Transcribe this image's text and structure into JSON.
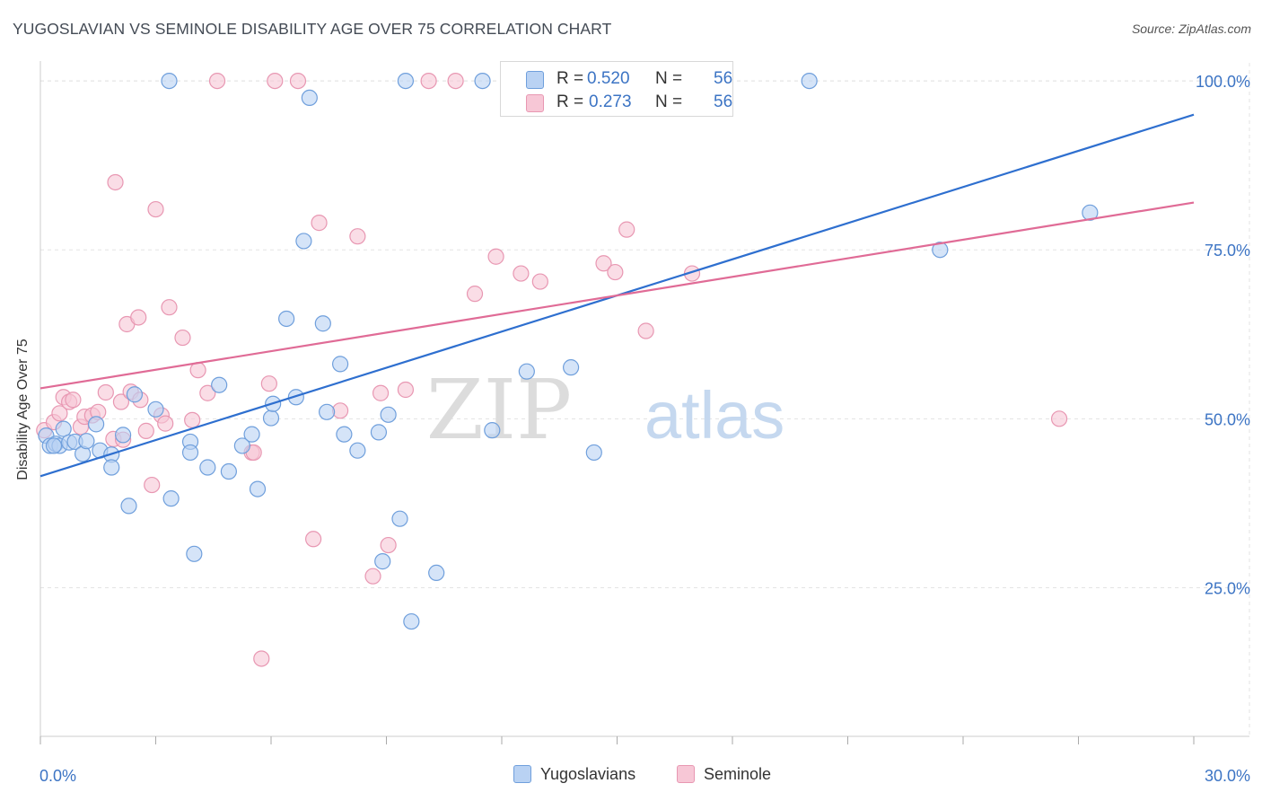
{
  "title": "YUGOSLAVIAN VS SEMINOLE DISABILITY AGE OVER 75 CORRELATION CHART",
  "source": "Source: ZipAtlas.com",
  "watermark": {
    "zip": "ZIP",
    "atlas": "atlas"
  },
  "legend": {
    "r_label": "R =",
    "n_label": "N =",
    "rows": [
      {
        "r": "0.520",
        "n": "56"
      },
      {
        "r": "0.273",
        "n": "56"
      }
    ]
  },
  "bottom_legend": {
    "blue": "Yugoslavians",
    "pink": "Seminole"
  },
  "colors": {
    "blue_line": "#2e6fcf",
    "pink_line": "#e06b96",
    "blue_fill": "#b9d2f3",
    "blue_stroke": "#6f9fdc",
    "pink_fill": "#f7c7d6",
    "pink_stroke": "#e897b2",
    "tick_label": "#3c74c4",
    "grid": "#e3e3e3"
  },
  "chart_data": {
    "type": "scatter",
    "title": "YUGOSLAVIAN VS SEMINOLE DISABILITY AGE OVER 75 CORRELATION CHART",
    "xlabel": "",
    "ylabel": "Disability Age Over 75",
    "xlim": [
      0,
      30
    ],
    "ylim": [
      3,
      104
    ],
    "x_tick_labels": [
      "0.0%",
      "30.0%"
    ],
    "y_ticks": [
      25,
      50,
      75,
      100
    ],
    "y_tick_labels": [
      "25.0%",
      "50.0%",
      "75.0%",
      "100.0%"
    ],
    "grid": true,
    "legend_position": "top-center",
    "series": [
      {
        "name": "Yugoslavians",
        "color": "#6f9fdc",
        "trend": {
          "x": [
            0,
            30
          ],
          "y": [
            41.5,
            95.0
          ]
        },
        "points": [
          {
            "x": 0.15,
            "y": 47.5
          },
          {
            "x": 0.25,
            "y": 46.0
          },
          {
            "x": 0.4,
            "y": 46.3
          },
          {
            "x": 0.5,
            "y": 46.0
          },
          {
            "x": 0.6,
            "y": 48.5
          },
          {
            "x": 0.75,
            "y": 46.5
          },
          {
            "x": 0.9,
            "y": 46.6
          },
          {
            "x": 1.1,
            "y": 44.8
          },
          {
            "x": 1.45,
            "y": 49.2
          },
          {
            "x": 1.55,
            "y": 45.3
          },
          {
            "x": 1.85,
            "y": 44.7
          },
          {
            "x": 1.85,
            "y": 42.8
          },
          {
            "x": 2.15,
            "y": 47.6
          },
          {
            "x": 2.45,
            "y": 53.6
          },
          {
            "x": 3.0,
            "y": 51.4
          },
          {
            "x": 3.4,
            "y": 38.2
          },
          {
            "x": 4.0,
            "y": 30.0
          },
          {
            "x": 3.9,
            "y": 46.6
          },
          {
            "x": 4.35,
            "y": 42.8
          },
          {
            "x": 4.65,
            "y": 55.0
          },
          {
            "x": 4.9,
            "y": 42.2
          },
          {
            "x": 5.25,
            "y": 46.0
          },
          {
            "x": 5.5,
            "y": 47.7
          },
          {
            "x": 5.65,
            "y": 39.6
          },
          {
            "x": 6.0,
            "y": 50.1
          },
          {
            "x": 6.05,
            "y": 52.2
          },
          {
            "x": 6.4,
            "y": 64.8
          },
          {
            "x": 6.65,
            "y": 53.2
          },
          {
            "x": 7.0,
            "y": 97.5
          },
          {
            "x": 7.35,
            "y": 64.1
          },
          {
            "x": 7.45,
            "y": 51.0
          },
          {
            "x": 7.8,
            "y": 58.1
          },
          {
            "x": 7.9,
            "y": 47.7
          },
          {
            "x": 8.25,
            "y": 45.3
          },
          {
            "x": 8.8,
            "y": 48.0
          },
          {
            "x": 8.9,
            "y": 28.9
          },
          {
            "x": 9.05,
            "y": 50.6
          },
          {
            "x": 9.35,
            "y": 35.2
          },
          {
            "x": 9.5,
            "y": 100
          },
          {
            "x": 9.65,
            "y": 20.0
          },
          {
            "x": 10.3,
            "y": 27.2
          },
          {
            "x": 11.5,
            "y": 100
          },
          {
            "x": 11.75,
            "y": 48.3
          },
          {
            "x": 12.65,
            "y": 57.0
          },
          {
            "x": 13.15,
            "y": 100
          },
          {
            "x": 13.8,
            "y": 57.6
          },
          {
            "x": 14.4,
            "y": 45.0
          },
          {
            "x": 20.0,
            "y": 100
          },
          {
            "x": 23.4,
            "y": 75.0
          },
          {
            "x": 27.3,
            "y": 80.5
          },
          {
            "x": 3.35,
            "y": 100
          },
          {
            "x": 2.3,
            "y": 37.1
          },
          {
            "x": 6.85,
            "y": 76.3
          },
          {
            "x": 3.9,
            "y": 45.0
          },
          {
            "x": 1.2,
            "y": 46.7
          },
          {
            "x": 0.35,
            "y": 46.0
          }
        ]
      },
      {
        "name": "Seminole",
        "color": "#e897b2",
        "trend": {
          "x": [
            0,
            30
          ],
          "y": [
            54.5,
            82.0
          ]
        },
        "points": [
          {
            "x": 0.1,
            "y": 48.3
          },
          {
            "x": 0.35,
            "y": 49.5
          },
          {
            "x": 0.5,
            "y": 50.8
          },
          {
            "x": 0.6,
            "y": 53.2
          },
          {
            "x": 0.75,
            "y": 52.5
          },
          {
            "x": 0.85,
            "y": 52.8
          },
          {
            "x": 1.05,
            "y": 48.8
          },
          {
            "x": 1.15,
            "y": 50.3
          },
          {
            "x": 1.35,
            "y": 50.5
          },
          {
            "x": 1.5,
            "y": 51.0
          },
          {
            "x": 1.7,
            "y": 53.9
          },
          {
            "x": 1.9,
            "y": 47.0
          },
          {
            "x": 1.95,
            "y": 85.0
          },
          {
            "x": 2.1,
            "y": 52.5
          },
          {
            "x": 2.25,
            "y": 64.0
          },
          {
            "x": 2.35,
            "y": 54.0
          },
          {
            "x": 2.55,
            "y": 65.0
          },
          {
            "x": 2.6,
            "y": 52.8
          },
          {
            "x": 2.75,
            "y": 48.2
          },
          {
            "x": 2.9,
            "y": 40.2
          },
          {
            "x": 3.0,
            "y": 81.0
          },
          {
            "x": 3.15,
            "y": 50.5
          },
          {
            "x": 3.25,
            "y": 49.3
          },
          {
            "x": 3.35,
            "y": 66.5
          },
          {
            "x": 3.7,
            "y": 62.0
          },
          {
            "x": 3.95,
            "y": 49.8
          },
          {
            "x": 4.1,
            "y": 57.2
          },
          {
            "x": 4.35,
            "y": 53.8
          },
          {
            "x": 4.6,
            "y": 100
          },
          {
            "x": 5.5,
            "y": 45.0
          },
          {
            "x": 5.75,
            "y": 14.5
          },
          {
            "x": 5.95,
            "y": 55.2
          },
          {
            "x": 6.1,
            "y": 100
          },
          {
            "x": 6.7,
            "y": 100
          },
          {
            "x": 7.1,
            "y": 32.2
          },
          {
            "x": 7.25,
            "y": 79.0
          },
          {
            "x": 7.8,
            "y": 51.2
          },
          {
            "x": 8.25,
            "y": 77.0
          },
          {
            "x": 8.65,
            "y": 26.7
          },
          {
            "x": 8.85,
            "y": 53.8
          },
          {
            "x": 9.05,
            "y": 31.3
          },
          {
            "x": 9.5,
            "y": 54.3
          },
          {
            "x": 10.1,
            "y": 100
          },
          {
            "x": 10.8,
            "y": 100
          },
          {
            "x": 11.3,
            "y": 68.5
          },
          {
            "x": 11.85,
            "y": 74.0
          },
          {
            "x": 12.5,
            "y": 71.5
          },
          {
            "x": 13.0,
            "y": 70.3
          },
          {
            "x": 14.65,
            "y": 73.0
          },
          {
            "x": 14.95,
            "y": 71.7
          },
          {
            "x": 15.25,
            "y": 78.0
          },
          {
            "x": 15.75,
            "y": 63.0
          },
          {
            "x": 16.95,
            "y": 71.5
          },
          {
            "x": 26.5,
            "y": 50.0
          },
          {
            "x": 2.15,
            "y": 46.9
          },
          {
            "x": 5.55,
            "y": 45.0
          }
        ]
      }
    ]
  }
}
